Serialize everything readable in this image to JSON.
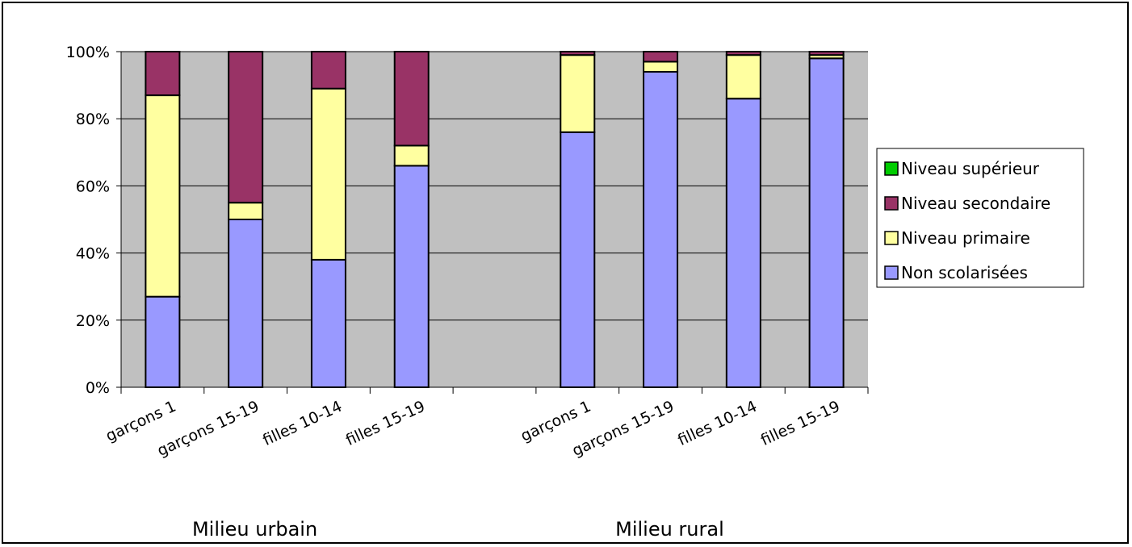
{
  "chart_data": {
    "type": "bar",
    "stacked": true,
    "percent": true,
    "yticks": [
      "0%",
      "20%",
      "40%",
      "60%",
      "80%",
      "100%"
    ],
    "ylim": [
      0,
      100
    ],
    "grid": true,
    "plot_background": "#C0C0C0",
    "legend_position": "right",
    "slots": [
      {
        "label": "garçons 1",
        "group": 0
      },
      {
        "label": "garçons 15-19",
        "group": 0
      },
      {
        "label": "filles 10-14",
        "group": 0
      },
      {
        "label": "filles 15-19",
        "group": 0
      },
      {
        "label": "",
        "group": null
      },
      {
        "label": "garçons 1",
        "group": 1
      },
      {
        "label": "garçons 15-19",
        "group": 1
      },
      {
        "label": "filles 10-14",
        "group": 1
      },
      {
        "label": "filles 15-19",
        "group": 1
      }
    ],
    "groups": [
      "Milieu urbain",
      "Milieu rural"
    ],
    "series": [
      {
        "name": "Non scolarisées",
        "color": "#9999FF",
        "values": [
          27,
          50,
          38,
          66,
          null,
          76,
          94,
          86,
          98
        ]
      },
      {
        "name": "Niveau primaire",
        "color": "#FFFFA0",
        "values": [
          60,
          5,
          51,
          6,
          null,
          23,
          3,
          13,
          1
        ]
      },
      {
        "name": "Niveau secondaire",
        "color": "#993366",
        "values": [
          13,
          45,
          11,
          28,
          null,
          1,
          3,
          1,
          1
        ]
      },
      {
        "name": "Niveau supérieur",
        "color": "#00CC00",
        "values": [
          0,
          0,
          0,
          0,
          null,
          0,
          0,
          0,
          0
        ]
      }
    ],
    "legend_order": [
      "Niveau supérieur",
      "Niveau secondaire",
      "Niveau primaire",
      "Non scolarisées"
    ]
  }
}
